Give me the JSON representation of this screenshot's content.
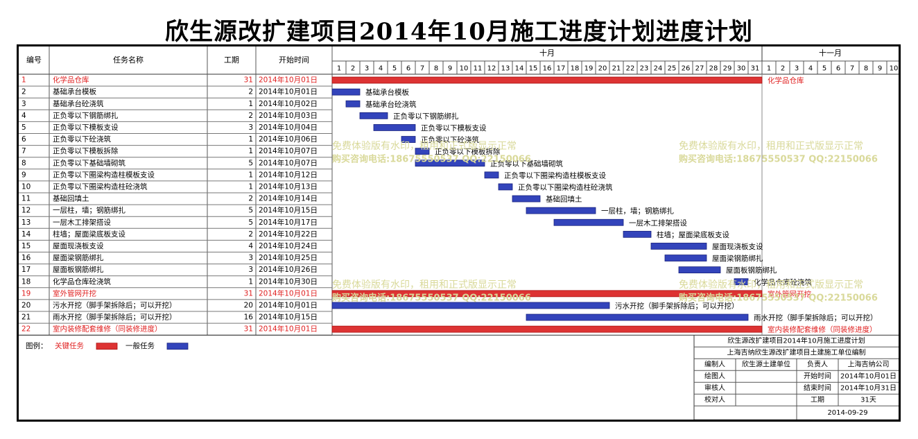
{
  "title": "欣生源改扩建项目2014年10月施工进度计划进度计划",
  "columns": {
    "no": "编号",
    "name": "任务名称",
    "duration": "工期",
    "start": "开始时间"
  },
  "months": [
    "十月",
    "十一月"
  ],
  "oct_days": [
    "1",
    "2",
    "3",
    "4",
    "5",
    "6",
    "7",
    "8",
    "9",
    "10",
    "11",
    "12",
    "13",
    "14",
    "15",
    "16",
    "17",
    "18",
    "19",
    "20",
    "21",
    "22",
    "23",
    "24",
    "25",
    "26",
    "27",
    "28",
    "29",
    "30",
    "31"
  ],
  "nov_days": [
    "1",
    "2",
    "3",
    "4",
    "5",
    "6",
    "7",
    "8",
    "9",
    "10"
  ],
  "colors": {
    "critical": "#dd3333",
    "normal": "#3344bb",
    "critical_text": "#e02020",
    "watermark": "#d9d99a"
  },
  "chart_data": {
    "type": "gantt",
    "unit": "days",
    "tasks": [
      {
        "id": "1",
        "name": "化学品仓库",
        "duration": 31,
        "start": "2014年10月01日",
        "start_day": 1,
        "critical": true
      },
      {
        "id": "2",
        "name": "基础承台模板",
        "duration": 2,
        "start": "2014年10月01日",
        "start_day": 1,
        "critical": false
      },
      {
        "id": "3",
        "name": "基础承台砼浇筑",
        "duration": 1,
        "start": "2014年10月02日",
        "start_day": 2,
        "critical": false
      },
      {
        "id": "4",
        "name": "正负零以下钢筋绑扎",
        "duration": 2,
        "start": "2014年10月03日",
        "start_day": 3,
        "critical": false
      },
      {
        "id": "5",
        "name": "正负零以下模板支设",
        "duration": 3,
        "start": "2014年10月04日",
        "start_day": 4,
        "critical": false
      },
      {
        "id": "6",
        "name": "正负零以下砼浇筑",
        "duration": 1,
        "start": "2014年10月06日",
        "start_day": 6,
        "critical": false
      },
      {
        "id": "7",
        "name": "正负零以下模板拆除",
        "duration": 1,
        "start": "2014年10月07日",
        "start_day": 7,
        "critical": false
      },
      {
        "id": "8",
        "name": "正负零以下基础墙砌筑",
        "duration": 5,
        "start": "2014年10月07日",
        "start_day": 7,
        "critical": false
      },
      {
        "id": "9",
        "name": "正负零以下圈梁构造柱模板支设",
        "duration": 1,
        "start": "2014年10月12日",
        "start_day": 12,
        "critical": false
      },
      {
        "id": "10",
        "name": "正负零以下圈梁构造柱砼浇筑",
        "duration": 1,
        "start": "2014年10月13日",
        "start_day": 13,
        "critical": false
      },
      {
        "id": "11",
        "name": "基础回填土",
        "duration": 2,
        "start": "2014年10月14日",
        "start_day": 14,
        "critical": false
      },
      {
        "id": "12",
        "name": "一层柱，墙；钢筋绑扎",
        "duration": 5,
        "start": "2014年10月15日",
        "start_day": 15,
        "critical": false
      },
      {
        "id": "13",
        "name": "一层木工排架搭设",
        "duration": 5,
        "start": "2014年10月17日",
        "start_day": 17,
        "critical": false
      },
      {
        "id": "14",
        "name": "柱墙；屋面梁底板支设",
        "duration": 2,
        "start": "2014年10月22日",
        "start_day": 22,
        "critical": false
      },
      {
        "id": "15",
        "name": "屋面现浇板支设",
        "duration": 4,
        "start": "2014年10月24日",
        "start_day": 24,
        "critical": false
      },
      {
        "id": "16",
        "name": "屋面梁钢筋绑扎",
        "duration": 3,
        "start": "2014年10月25日",
        "start_day": 25,
        "critical": false
      },
      {
        "id": "17",
        "name": "屋面板钢筋绑扎",
        "duration": 3,
        "start": "2014年10月26日",
        "start_day": 26,
        "critical": false
      },
      {
        "id": "18",
        "name": "化学品仓库砼浇筑",
        "duration": 1,
        "start": "2014年10月30日",
        "start_day": 30,
        "critical": false
      },
      {
        "id": "19",
        "name": "室外管网开挖",
        "duration": 31,
        "start": "2014年10月01日",
        "start_day": 1,
        "critical": true
      },
      {
        "id": "20",
        "name": "污水开挖（脚手架拆除后；可以开挖）",
        "duration": 20,
        "start": "2014年10月01日",
        "start_day": 1,
        "critical": false
      },
      {
        "id": "21",
        "name": "雨水开挖（脚手架拆除后；可以开挖）",
        "duration": 16,
        "start": "2014年10月15日",
        "start_day": 15,
        "critical": false
      },
      {
        "id": "22",
        "name": "室内装修配套维修（同装修进度）",
        "duration": 31,
        "start": "2014年10月01日",
        "start_day": 1,
        "critical": true
      }
    ]
  },
  "legend": {
    "label": "图例：",
    "critical": "关键任务",
    "normal": "一般任务"
  },
  "info": {
    "title": "欣生源改扩建项目2014年10月施工进度计划",
    "subtitle": "上海吉纳欣生源改扩建项目土建施工单位编制",
    "editor_label": "编制人",
    "editor_value": "欣生源土建单位",
    "leader_label": "负责人",
    "leader_value": "上海吉纳公司",
    "drawer_label": "绘图人",
    "start_label": "开始时间",
    "start_value": "2014年10月01日",
    "reviewer_label": "审核人",
    "end_label": "结束时间",
    "end_value": "2014年10月31日",
    "checker_label": "校对人",
    "duration_label": "工期",
    "duration_value": "31天",
    "date": "2014-09-29"
  },
  "watermark": {
    "line1": "免费体验版有水印，租用和正式版显示正常",
    "line2": "购买咨询电话:18675550537 QQ:22150066"
  }
}
